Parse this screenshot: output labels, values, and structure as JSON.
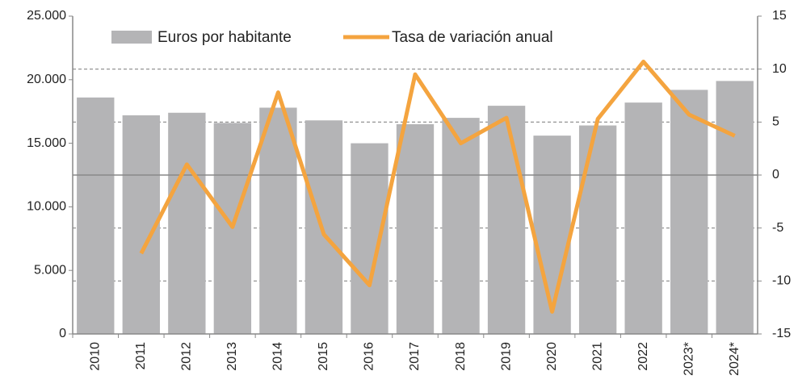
{
  "chart_data": {
    "type": "bar_line",
    "categories": [
      "2010",
      "2011",
      "2012",
      "2013",
      "2014",
      "2015",
      "2016",
      "2017",
      "2018",
      "2019",
      "2020",
      "2021",
      "2022",
      "2023*",
      "2024*"
    ],
    "series": [
      {
        "name": "Euros por habitante",
        "type": "bar",
        "color": "#b4b4b6",
        "values": [
          18600,
          17200,
          17400,
          16600,
          17800,
          16800,
          15000,
          16500,
          17000,
          17950,
          15600,
          16400,
          18200,
          19200,
          19900
        ]
      },
      {
        "name": "Tasa de variación anual",
        "type": "line",
        "axis": "y2",
        "color": "#f4a43f",
        "values": [
          null,
          -7.4,
          1.0,
          -4.9,
          7.8,
          -5.6,
          -10.4,
          9.5,
          3.0,
          5.4,
          -12.9,
          5.3,
          10.7,
          5.7,
          3.7
        ]
      }
    ],
    "ylim": [
      0,
      25000
    ],
    "yticks": [
      0,
      {
        "value": 5000,
        "label": "5.000"
      },
      {
        "value": 10000,
        "label": "10.000"
      },
      {
        "value": 15000,
        "label": "15.000"
      },
      {
        "value": 20000,
        "label": "20.000"
      },
      {
        "value": 25000,
        "label": "25.000"
      }
    ],
    "y2lim": [
      -15,
      15
    ],
    "y2ticks": [
      -15,
      -10,
      -5,
      0,
      5,
      10,
      15
    ],
    "grid": true,
    "legend": "top"
  }
}
